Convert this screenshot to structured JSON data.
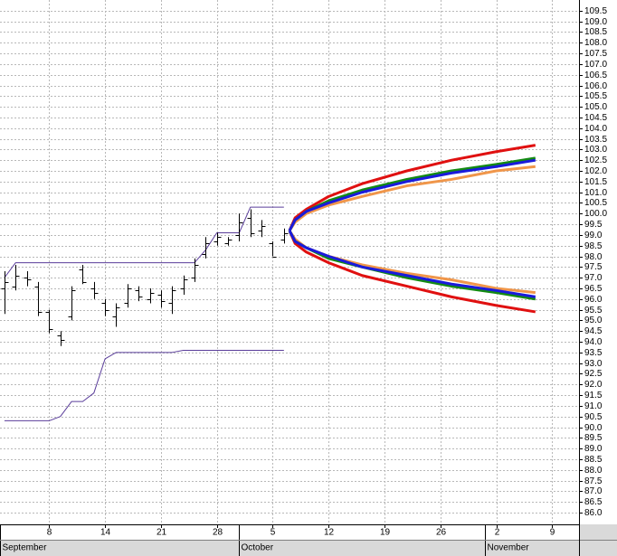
{
  "chart_data": {
    "type": "ohlc",
    "x": [
      0,
      1,
      2,
      3,
      4,
      5,
      6,
      7,
      8,
      9,
      10,
      11,
      12,
      13,
      14,
      15,
      16,
      17,
      18,
      19,
      20,
      21,
      22,
      23,
      24,
      25
    ],
    "open": [
      96.5,
      96.6,
      97.0,
      96.6,
      95.4,
      94.3,
      95.2,
      97.4,
      96.5,
      95.8,
      95.2,
      95.8,
      96.4,
      96.0,
      96.2,
      95.8,
      96.5,
      97.0,
      98.1,
      98.7,
      98.6,
      99.0,
      99.8,
      99.2,
      98.6,
      98.8
    ],
    "high": [
      97.3,
      97.6,
      97.3,
      96.8,
      95.5,
      94.5,
      96.6,
      97.6,
      96.8,
      96.0,
      95.8,
      96.7,
      96.6,
      96.5,
      96.4,
      96.6,
      97.1,
      97.9,
      98.9,
      99.1,
      98.9,
      100.0,
      100.2,
      99.7,
      98.7,
      99.3
    ],
    "low": [
      95.3,
      96.4,
      96.6,
      95.2,
      94.4,
      93.8,
      95.0,
      96.7,
      96.0,
      95.2,
      94.7,
      95.6,
      95.9,
      95.8,
      95.6,
      95.3,
      96.2,
      96.8,
      97.9,
      98.5,
      98.5,
      98.7,
      98.9,
      98.9,
      98.0,
      98.6
    ],
    "close": [
      96.8,
      97.1,
      96.9,
      95.4,
      94.6,
      94.1,
      96.4,
      96.8,
      96.3,
      95.5,
      95.6,
      96.5,
      96.1,
      96.3,
      95.9,
      96.4,
      96.9,
      97.6,
      98.6,
      98.9,
      98.8,
      99.6,
      99.1,
      99.4,
      98.0,
      99.1
    ],
    "bar_color": "#000000",
    "series": [
      {
        "color": "#5a3d9a",
        "values": [
          97.0,
          97.7,
          97.7,
          97.7,
          97.7,
          97.7,
          97.7,
          97.7,
          97.7,
          97.7,
          97.7,
          97.7,
          97.7,
          97.7,
          97.7,
          97.7,
          97.7,
          97.7,
          98.3,
          99.1,
          99.1,
          99.1,
          100.3,
          100.3,
          100.3,
          100.3
        ]
      },
      {
        "color": "#5a3d9a",
        "values": [
          90.3,
          90.3,
          90.3,
          90.3,
          90.3,
          90.5,
          91.2,
          91.2,
          91.6,
          93.2,
          93.5,
          93.5,
          93.5,
          93.5,
          93.5,
          93.5,
          93.6,
          93.6,
          93.6,
          93.6,
          93.6,
          93.6,
          93.6,
          93.6,
          93.6,
          93.6
        ]
      },
      {
        "color": "#f0964a",
        "x": [
          25.5,
          26,
          27,
          29,
          32,
          36,
          40,
          44,
          47.5
        ],
        "values": [
          99.2,
          99.6,
          100.0,
          100.4,
          100.8,
          101.3,
          101.6,
          102.0,
          102.2
        ]
      },
      {
        "color": "#f0964a",
        "x": [
          25.5,
          26,
          27,
          29,
          32,
          36,
          40,
          44,
          47.5
        ],
        "values": [
          99.2,
          98.8,
          98.4,
          98.0,
          97.6,
          97.2,
          96.9,
          96.5,
          96.3
        ]
      },
      {
        "color": "#e01010",
        "x": [
          25.5,
          26,
          27,
          29,
          32,
          36,
          40,
          44,
          47.5
        ],
        "values": [
          99.2,
          99.8,
          100.2,
          100.8,
          101.4,
          102.0,
          102.5,
          102.9,
          103.2
        ]
      },
      {
        "color": "#e01010",
        "x": [
          25.5,
          26,
          27,
          29,
          32,
          36,
          40,
          44,
          47.5
        ],
        "values": [
          99.2,
          98.6,
          98.2,
          97.7,
          97.1,
          96.6,
          96.1,
          95.7,
          95.4
        ]
      },
      {
        "color": "#138a13",
        "x": [
          25.5,
          26,
          27,
          29,
          32,
          36,
          40,
          44,
          47.5
        ],
        "values": [
          99.2,
          99.7,
          100.1,
          100.6,
          101.1,
          101.6,
          102.0,
          102.3,
          102.6
        ]
      },
      {
        "color": "#138a13",
        "x": [
          25.5,
          26,
          27,
          29,
          32,
          36,
          40,
          44,
          47.5
        ],
        "values": [
          99.2,
          98.7,
          98.4,
          97.9,
          97.5,
          97.0,
          96.6,
          96.3,
          96.0
        ]
      },
      {
        "color": "#1a1adc",
        "x": [
          25.5,
          26,
          27,
          29,
          32,
          36,
          40,
          44,
          47.5
        ],
        "values": [
          99.2,
          99.7,
          100.1,
          100.5,
          101.0,
          101.5,
          101.9,
          102.2,
          102.5
        ]
      },
      {
        "color": "#1a1adc",
        "x": [
          25.5,
          26,
          27,
          29,
          32,
          36,
          40,
          44,
          47.5
        ],
        "values": [
          99.2,
          98.7,
          98.4,
          98.0,
          97.5,
          97.1,
          96.7,
          96.4,
          96.1
        ]
      }
    ],
    "xlim": [
      -0.4,
      51.4
    ],
    "xticks": [
      {
        "value": 4,
        "label": "8"
      },
      {
        "value": 9,
        "label": "14"
      },
      {
        "value": 14,
        "label": "21"
      },
      {
        "value": 19,
        "label": "28"
      },
      {
        "value": 24,
        "label": "5"
      },
      {
        "value": 29,
        "label": "12"
      },
      {
        "value": 34,
        "label": "19"
      },
      {
        "value": 39,
        "label": "26"
      },
      {
        "value": 44,
        "label": "2"
      },
      {
        "value": 49,
        "label": "9"
      }
    ],
    "months": [
      {
        "value": -0.4,
        "label": "September"
      },
      {
        "value": 21,
        "label": "October"
      },
      {
        "value": 43,
        "label": "November"
      }
    ],
    "ylim": [
      85.45,
      110.0
    ],
    "yticks": [
      {
        "value": 86,
        "label": "86.0"
      },
      86.5,
      {
        "value": 87,
        "label": "87.0"
      },
      87.5,
      {
        "value": 88,
        "label": "88.0"
      },
      88.5,
      {
        "value": 89,
        "label": "89.0"
      },
      89.5,
      {
        "value": 90,
        "label": "90.0"
      },
      90.5,
      {
        "value": 91,
        "label": "91.0"
      },
      91.5,
      {
        "value": 92,
        "label": "92.0"
      },
      92.5,
      {
        "value": 93,
        "label": "93.0"
      },
      93.5,
      {
        "value": 94,
        "label": "94.0"
      },
      94.5,
      {
        "value": 95,
        "label": "95.0"
      },
      95.5,
      {
        "value": 96,
        "label": "96.0"
      },
      96.5,
      {
        "value": 97,
        "label": "97.0"
      },
      97.5,
      {
        "value": 98,
        "label": "98.0"
      },
      98.5,
      {
        "value": 99,
        "label": "99.0"
      },
      99.5,
      {
        "value": 100,
        "label": "100.0"
      },
      100.5,
      {
        "value": 101,
        "label": "101.0"
      },
      101.5,
      {
        "value": 102,
        "label": "102.0"
      },
      102.5,
      {
        "value": 103,
        "label": "103.0"
      },
      103.5,
      {
        "value": 104,
        "label": "104.0"
      },
      104.5,
      {
        "value": 105,
        "label": "105.0"
      },
      105.5,
      {
        "value": 106,
        "label": "106.0"
      },
      106.5,
      {
        "value": 107,
        "label": "107.0"
      },
      107.5,
      {
        "value": 108,
        "label": "108.0"
      },
      108.5,
      {
        "value": 109,
        "label": "109.0"
      },
      109.5
    ],
    "grid": true,
    "y_axis_side": "right"
  }
}
